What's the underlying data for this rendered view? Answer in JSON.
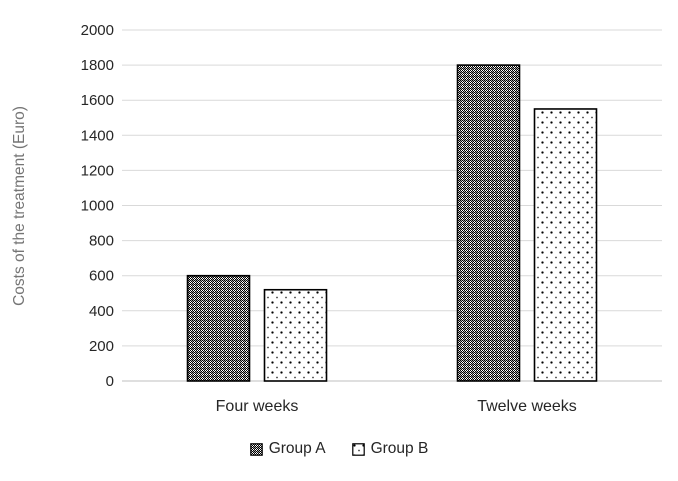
{
  "chart_data": {
    "type": "bar",
    "title": "",
    "ylabel": "Costs of the treatment (Euro)",
    "xlabel": "",
    "categories": [
      "Four weeks",
      "Twelve weeks"
    ],
    "series": [
      {
        "name": "Group A",
        "pattern": "checkered-grid",
        "values": [
          600,
          1800
        ]
      },
      {
        "name": "Group B",
        "pattern": "dotted",
        "values": [
          520,
          1550
        ]
      }
    ],
    "ylim": [
      0,
      2000
    ],
    "ytick_step": 200,
    "ytick_labels": [
      "0",
      "200",
      "400",
      "600",
      "800",
      "1000",
      "1200",
      "1400",
      "1600",
      "1800",
      "2000"
    ],
    "grid": "horizontal",
    "legend_position": "bottom",
    "colors": {
      "background": "#ffffff",
      "gridline": "#d9d9d9",
      "axis_line": "#bfbfbf",
      "bar_outline": "#000000",
      "tick_label": "#262626",
      "axis_title": "#757575"
    }
  }
}
